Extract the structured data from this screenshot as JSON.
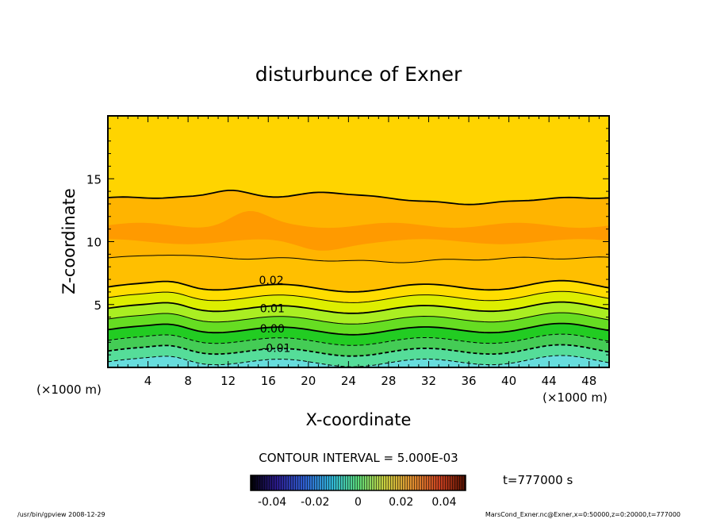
{
  "chart_data": {
    "type": "contour",
    "title": "disturbunce of Exner",
    "xlabel": "X-coordinate",
    "ylabel": "Z-coordinate",
    "x_unit": "(×1000 m)",
    "y_unit": "(×1000 m)",
    "xlim": [
      0,
      50
    ],
    "ylim": [
      0,
      20
    ],
    "x_ticks": [
      4,
      8,
      12,
      16,
      20,
      24,
      28,
      32,
      36,
      40,
      44,
      48
    ],
    "y_ticks": [
      5,
      10,
      15
    ],
    "contour_interval_text": "CONTOUR INTERVAL = 5.000E-03",
    "contour_levels": [
      -0.015,
      -0.01,
      -0.005,
      0.0,
      0.005,
      0.01,
      0.015,
      0.02,
      0.025,
      0.03
    ],
    "contour_labels": [
      {
        "text": "0.02",
        "x": 16.3,
        "z": 7.0
      },
      {
        "text": "0.01",
        "x": 16.4,
        "z": 4.75
      },
      {
        "text": "0.00",
        "x": 16.4,
        "z": 3.15
      },
      {
        "text": "-0.01",
        "x": 16.8,
        "z": 1.6
      }
    ],
    "colorbar": {
      "ticks": [
        "-0.04",
        "-0.02",
        "0",
        "0.02",
        "0.04"
      ],
      "min": -0.05,
      "max": 0.05
    },
    "time_label": "t=777000 s"
  },
  "footer": {
    "left": "/usr/bin/gpview   2008-12-29",
    "right": "MarsCond_Exner.nc@Exner,x=0:50000,z=0:20000,t=777000"
  }
}
